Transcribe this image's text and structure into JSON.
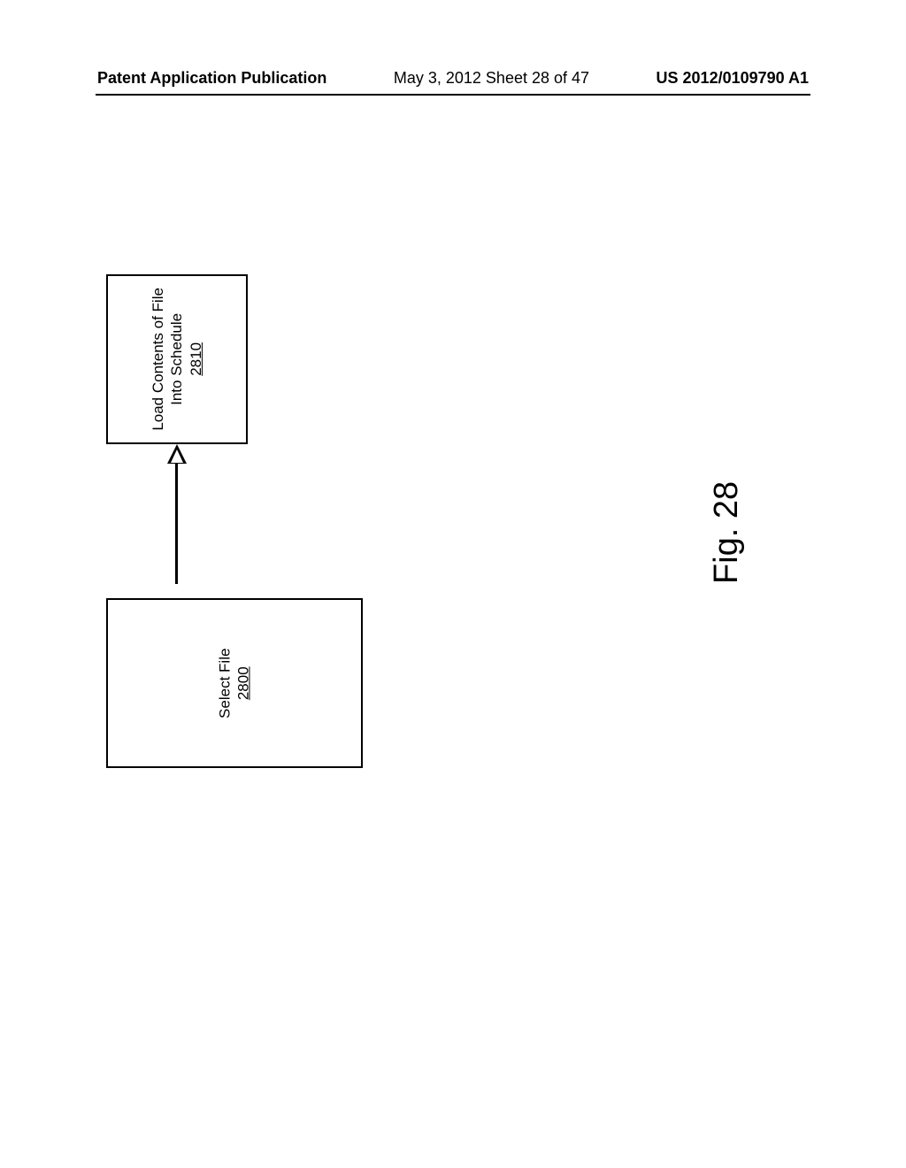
{
  "header": {
    "left": "Patent Application Publication",
    "mid": "May 3, 2012   Sheet 28 of 47",
    "right": "US 2012/0109790 A1"
  },
  "diagram": {
    "type": "flowchart",
    "background_color": "#ffffff",
    "border_color": "#000000",
    "border_width": 2.5,
    "font_size": 17,
    "nodes": [
      {
        "id": "n1",
        "lines": [
          "Load Contents of File",
          "Into Schedule"
        ],
        "ref": "2810"
      },
      {
        "id": "n2",
        "lines": [
          "Select File"
        ],
        "ref": "2800"
      }
    ],
    "edges": [
      {
        "from": "n2",
        "to": "n1",
        "style": "open-arrow"
      }
    ]
  },
  "figure_label": "Fig. 28"
}
